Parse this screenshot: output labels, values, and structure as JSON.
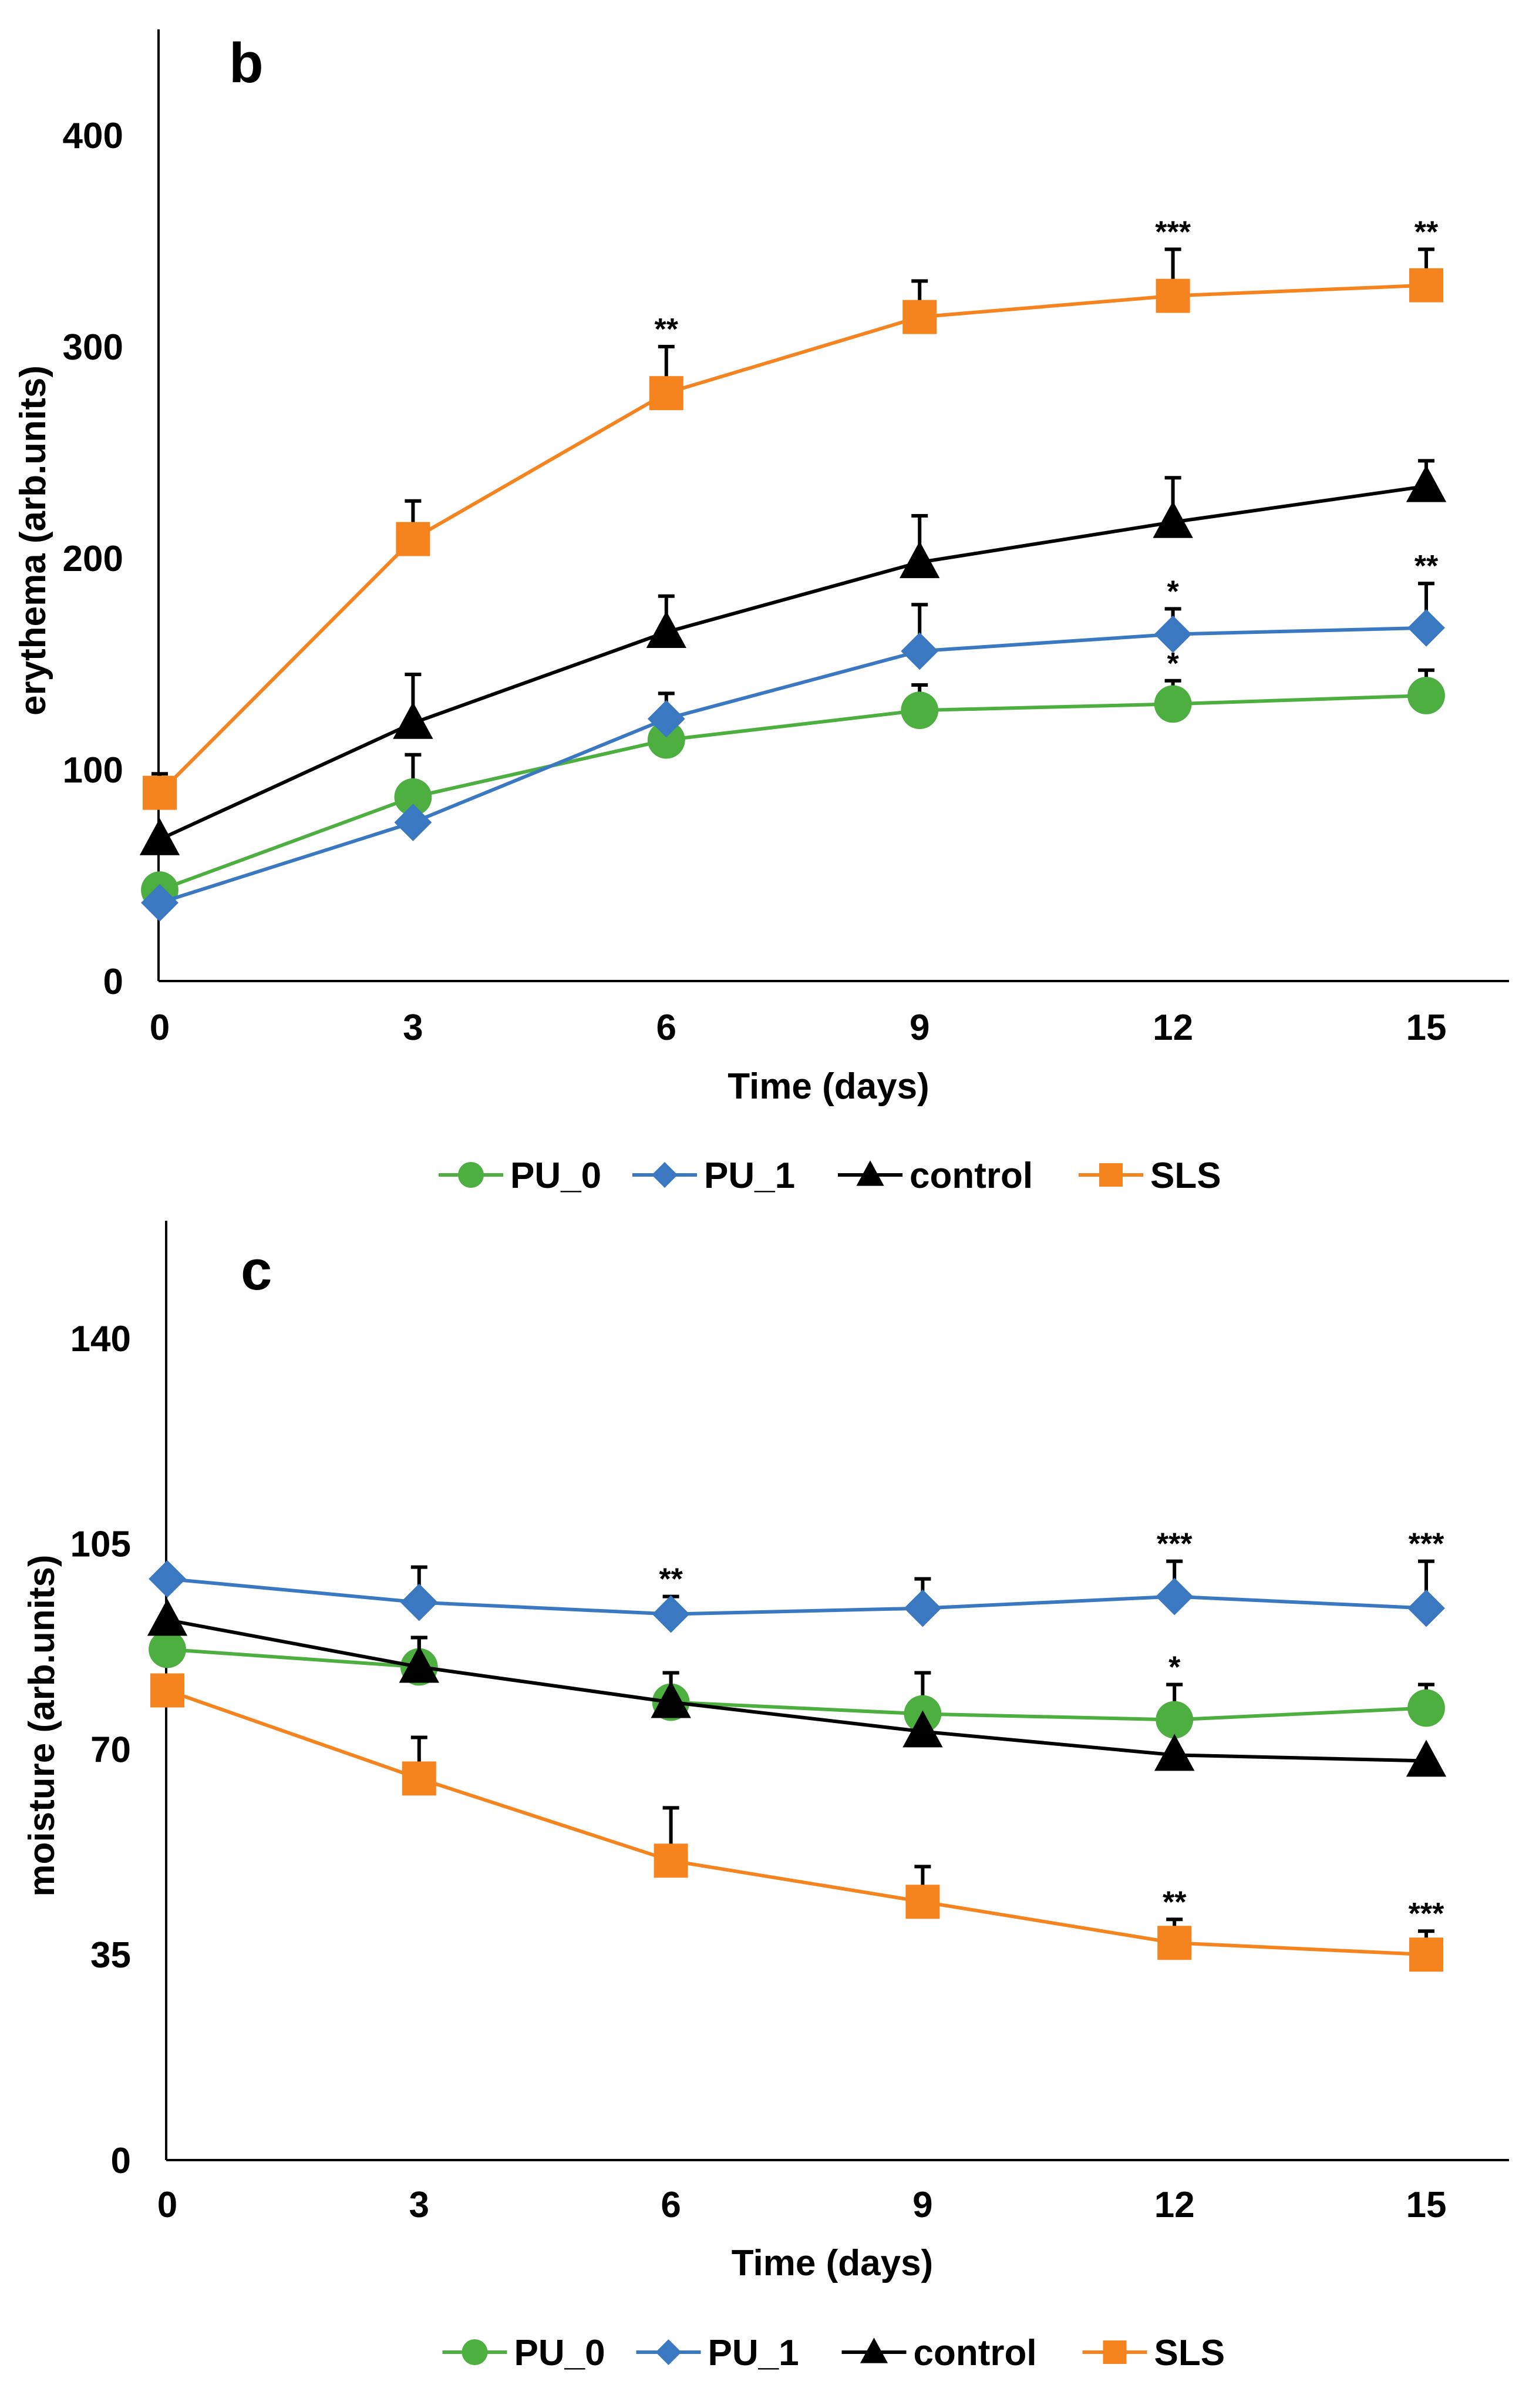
{
  "chart_data": [
    {
      "type": "line",
      "panel_label": "b",
      "title": "",
      "xlabel": "Time (days)",
      "ylabel": "erythema (arb.units)",
      "x": [
        0,
        3,
        6,
        9,
        12,
        15
      ],
      "x_ticks": [
        "0",
        "3",
        "6",
        "9",
        "12",
        "15"
      ],
      "ylim": [
        0,
        450
      ],
      "y_ticks": [
        "0",
        "100",
        "200",
        "300",
        "400"
      ],
      "y_tick_values": [
        0,
        100,
        200,
        300,
        400
      ],
      "grid": false,
      "legend_position": "bottom-center",
      "series": [
        {
          "name": "PU_0",
          "color": "#4CAF3F",
          "marker": "circle",
          "values": [
            43,
            87,
            114,
            128,
            131,
            135
          ],
          "error": [
            0,
            20,
            22,
            12,
            11,
            12
          ],
          "significance": [
            "",
            "",
            "",
            "",
            "*",
            ""
          ]
        },
        {
          "name": "PU_1",
          "color": "#3B78C2",
          "marker": "diamond",
          "values": [
            37,
            75,
            124,
            156,
            164,
            167
          ],
          "error": [
            0,
            0,
            0,
            22,
            12,
            21
          ],
          "significance": [
            "",
            "",
            "",
            "",
            "*",
            "**"
          ]
        },
        {
          "name": "control",
          "color": "#000000",
          "marker": "triangle",
          "values": [
            67,
            122,
            165,
            198,
            217,
            234
          ],
          "error": [
            0,
            23,
            17,
            22,
            21,
            12
          ],
          "significance": [
            "",
            "",
            "",
            "",
            "",
            ""
          ]
        },
        {
          "name": "SLS",
          "color": "#F5841F",
          "marker": "square",
          "values": [
            89,
            209,
            278,
            314,
            324,
            329
          ],
          "error": [
            9,
            18,
            22,
            17,
            22,
            17
          ],
          "significance": [
            "",
            "",
            "**",
            "",
            "***",
            "**"
          ]
        }
      ]
    },
    {
      "type": "line",
      "panel_label": "c",
      "title": "",
      "xlabel": "Time (days)",
      "ylabel": "moisture (arb.units)",
      "x": [
        0,
        3,
        6,
        9,
        12,
        15
      ],
      "x_ticks": [
        "0",
        "3",
        "6",
        "9",
        "12",
        "15"
      ],
      "ylim": [
        0,
        160
      ],
      "y_ticks": [
        "0",
        "35",
        "70",
        "105",
        "140"
      ],
      "y_tick_values": [
        0,
        35,
        70,
        105,
        140
      ],
      "grid": false,
      "legend_position": "bottom-center",
      "series": [
        {
          "name": "PU_0",
          "color": "#4CAF3F",
          "marker": "circle",
          "values": [
            87,
            84,
            78,
            76,
            75,
            77
          ],
          "error": [
            0,
            5,
            5,
            7,
            6,
            4
          ],
          "significance": [
            "",
            "",
            "",
            "",
            "*",
            ""
          ]
        },
        {
          "name": "PU_1",
          "color": "#3B78C2",
          "marker": "diamond",
          "values": [
            99,
            95,
            93,
            94,
            96,
            94
          ],
          "error": [
            0,
            6,
            3,
            5,
            6,
            8
          ],
          "significance": [
            "",
            "",
            "**",
            "",
            "***",
            "***"
          ]
        },
        {
          "name": "control",
          "color": "#000000",
          "marker": "triangle",
          "values": [
            92,
            84,
            78,
            73,
            69,
            68
          ],
          "error": [
            0,
            5,
            5,
            0,
            0,
            0
          ],
          "significance": [
            "",
            "",
            "",
            "",
            "",
            ""
          ]
        },
        {
          "name": "SLS",
          "color": "#F5841F",
          "marker": "square",
          "values": [
            80,
            65,
            51,
            44,
            37,
            35
          ],
          "error": [
            0,
            7,
            9,
            6,
            4,
            4
          ],
          "significance": [
            "",
            "",
            "",
            "",
            "**",
            "***"
          ]
        }
      ]
    }
  ]
}
